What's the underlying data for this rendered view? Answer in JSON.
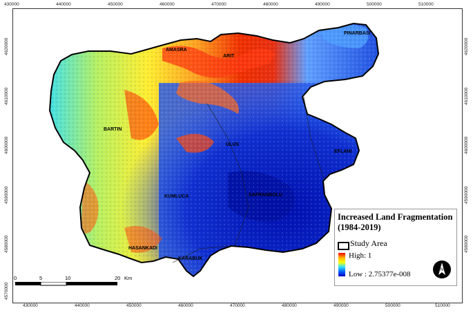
{
  "map": {
    "x_ticks": [
      "430000",
      "440000",
      "450000",
      "460000",
      "470000",
      "480000",
      "490000",
      "500000",
      "510000"
    ],
    "y_ticks": [
      "4620000",
      "4610000",
      "4600000",
      "4590000",
      "4580000",
      "4570000"
    ],
    "places": [
      {
        "name": "PINARBASI"
      },
      {
        "name": "AMASRA"
      },
      {
        "name": "ARIT"
      },
      {
        "name": "BARTIN"
      },
      {
        "name": "ULUS"
      },
      {
        "name": "EFLANI"
      },
      {
        "name": "KUMLUCA"
      },
      {
        "name": "SAFRANBOLU"
      },
      {
        "name": "HASANKADI"
      },
      {
        "name": "KARABUK"
      }
    ]
  },
  "legend": {
    "title": "Increased Land Fragmentation (1984-2019)",
    "study_area": "Study Area",
    "high": "High: 1",
    "low": "Low : 2.75377e-008",
    "ramp_colors": [
      "#ff0000",
      "#ffb000",
      "#ffff00",
      "#30e0ff",
      "#0060ff",
      "#0000c0"
    ]
  },
  "scale": {
    "labels": [
      "0",
      "5",
      "10",
      "20"
    ],
    "unit": "Km"
  },
  "north_arrow": {
    "icon": "north-arrow-icon",
    "letter": "N"
  }
}
